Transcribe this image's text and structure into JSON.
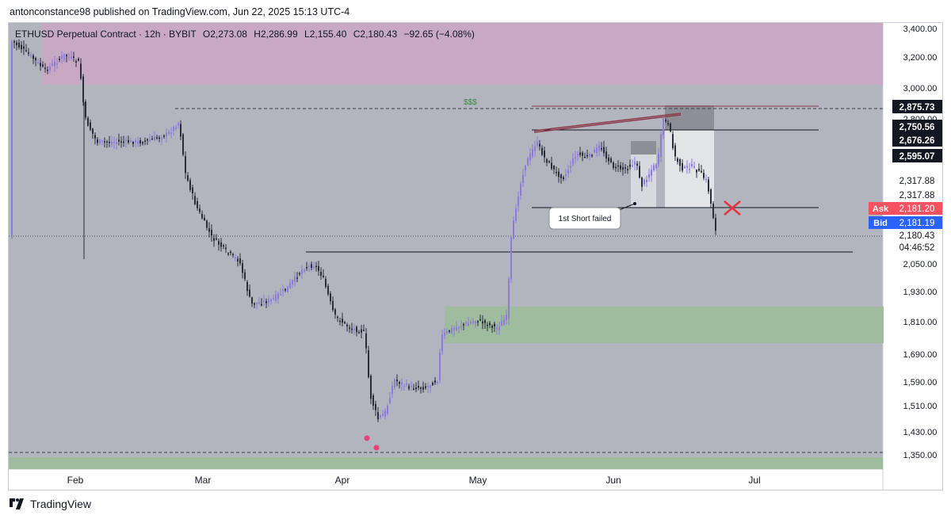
{
  "header": {
    "publish_line": "antonconstance98 published on TradingView.com, Jun 22, 2025 15:13 UTC-4"
  },
  "chart": {
    "symbol_line": "ETHUSD Perpetual Contract · 12h · BYBIT",
    "ohlc": {
      "open": "O2,273.08",
      "high": "H2,286.99",
      "low": "L2,155.40",
      "close": "C2,180.43",
      "change": "−92.65 (−4.08%)"
    },
    "annotation_label": "1st Short failed",
    "liquidity_marker": "$$$",
    "colors": {
      "background": "#b2b5be",
      "supply_zone": "#c9a9c4",
      "demand_zone": "#9fbc9f",
      "candle_up": "#8e7ad8",
      "candle_down": "#2a2e39",
      "ask": "#f7525f",
      "bid": "#2962ff",
      "wedge_line": "#8b3a4a",
      "cross": "#e8303f",
      "swing_dot": "#e0457a"
    }
  },
  "price_axis": {
    "ticks": [
      "3,400.00",
      "3,200.00",
      "3,000.00",
      "2,800.00",
      "2,050.00",
      "1,930.00",
      "1,810.00",
      "1,690.00",
      "1,590.00",
      "1,510.00",
      "1,430.00",
      "1,350.00"
    ],
    "labels": [
      {
        "text": "2,875.73",
        "kind": "dark"
      },
      {
        "text": "2,750.56",
        "kind": "dark"
      },
      {
        "text": "2,676.26",
        "kind": "dark"
      },
      {
        "text": "2,595.07",
        "kind": "dark"
      },
      {
        "text": "2,317.88",
        "kind": "plain"
      },
      {
        "text": "2,317.88",
        "kind": "plain"
      },
      {
        "text": "2,180.43",
        "kind": "plain"
      },
      {
        "text": "04:46:52",
        "kind": "plain"
      }
    ],
    "ask": {
      "label": "Ask",
      "value": "2,181.20"
    },
    "bid": {
      "label": "Bid",
      "value": "2,181.19"
    }
  },
  "time_axis": {
    "labels": [
      "Feb",
      "Mar",
      "Apr",
      "May",
      "Jun",
      "Jul"
    ]
  },
  "footer": {
    "brand": "TradingView"
  }
}
